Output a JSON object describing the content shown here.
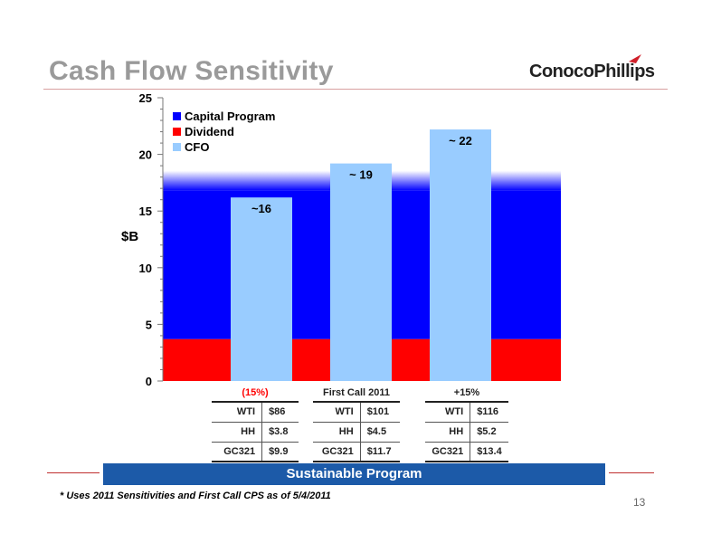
{
  "slide": {
    "title": "Cash Flow Sensitivity",
    "logo": "ConocoPhillips",
    "banner": "Sustainable Program",
    "footnote": "* Uses 2011 Sensitivities and First Call CPS as of 5/4/2011",
    "page_number": "13"
  },
  "chart_data": {
    "type": "bar",
    "ylabel": "$B",
    "ylim": [
      0,
      25
    ],
    "yticks": [
      "0",
      "5",
      "10",
      "15",
      "20",
      "25"
    ],
    "legend": {
      "placement": "top-left",
      "entries": [
        {
          "label": "Capital Program",
          "color": "#0000ff"
        },
        {
          "label": "Dividend",
          "color": "#ff0000"
        },
        {
          "label": "CFO",
          "color": "#99ccff"
        }
      ]
    },
    "background_bands": [
      {
        "name": "Dividend",
        "from": 0,
        "to": 3.7,
        "color": "#ff0000"
      },
      {
        "name": "Capital Program",
        "from": 3.7,
        "to": 16.8,
        "color": "#0000ff"
      }
    ],
    "series": [
      {
        "name": "CFO",
        "color": "#99ccff",
        "values": [
          16.2,
          19.2,
          22.2
        ],
        "labels": [
          "~16",
          "~ 19",
          "~ 22"
        ]
      }
    ]
  },
  "scenarios": [
    {
      "header": "(15%)",
      "header_color": "#ff0000",
      "rows": [
        {
          "k": "WTI",
          "v": "$86"
        },
        {
          "k": "HH",
          "v": "$3.8"
        },
        {
          "k": "GC321",
          "v": "$9.9"
        }
      ]
    },
    {
      "header": "First Call 2011",
      "header_color": "#222222",
      "rows": [
        {
          "k": "WTI",
          "v": "$101"
        },
        {
          "k": "HH",
          "v": "$4.5"
        },
        {
          "k": "GC321",
          "v": "$11.7"
        }
      ]
    },
    {
      "header": "+15%",
      "header_color": "#222222",
      "rows": [
        {
          "k": "WTI",
          "v": "$116"
        },
        {
          "k": "HH",
          "v": "$5.2"
        },
        {
          "k": "GC321",
          "v": "$13.4"
        }
      ]
    }
  ],
  "colors": {
    "title": "#9a9a9a",
    "banner": "#1c5aa8",
    "accent_red": "#c03030"
  }
}
